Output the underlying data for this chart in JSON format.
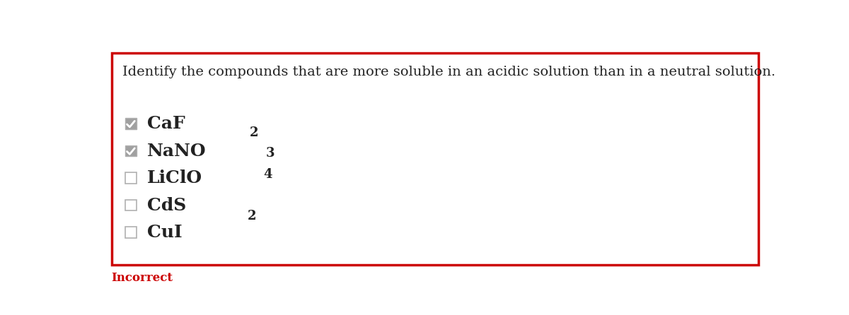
{
  "question": "Identify the compounds that are more soluble in an acidic solution than in a neutral solution.",
  "options": [
    {
      "main": "CaF",
      "sub": "2",
      "checked": true
    },
    {
      "main": "NaNO",
      "sub": "3",
      "checked": true
    },
    {
      "main": "LiClO",
      "sub": "4",
      "checked": false
    },
    {
      "main": "CdS",
      "sub": "",
      "checked": false
    },
    {
      "main": "CuI",
      "sub": "2",
      "checked": false
    }
  ],
  "incorrect_label": "Incorrect",
  "bg_color": "#ffffff",
  "border_color": "#cc0000",
  "text_color": "#222222",
  "checkbox_border_color": "#b0b0b0",
  "checkbox_fill_checked": "#a0a0a0",
  "checkbox_fill_unchecked": "#ffffff",
  "check_color": "#ffffff",
  "incorrect_color": "#cc0000",
  "question_fontsize": 14,
  "option_fontsize": 18,
  "sub_fontsize": 13,
  "incorrect_fontsize": 12,
  "fig_width": 12.0,
  "fig_height": 4.46,
  "dpi": 100
}
